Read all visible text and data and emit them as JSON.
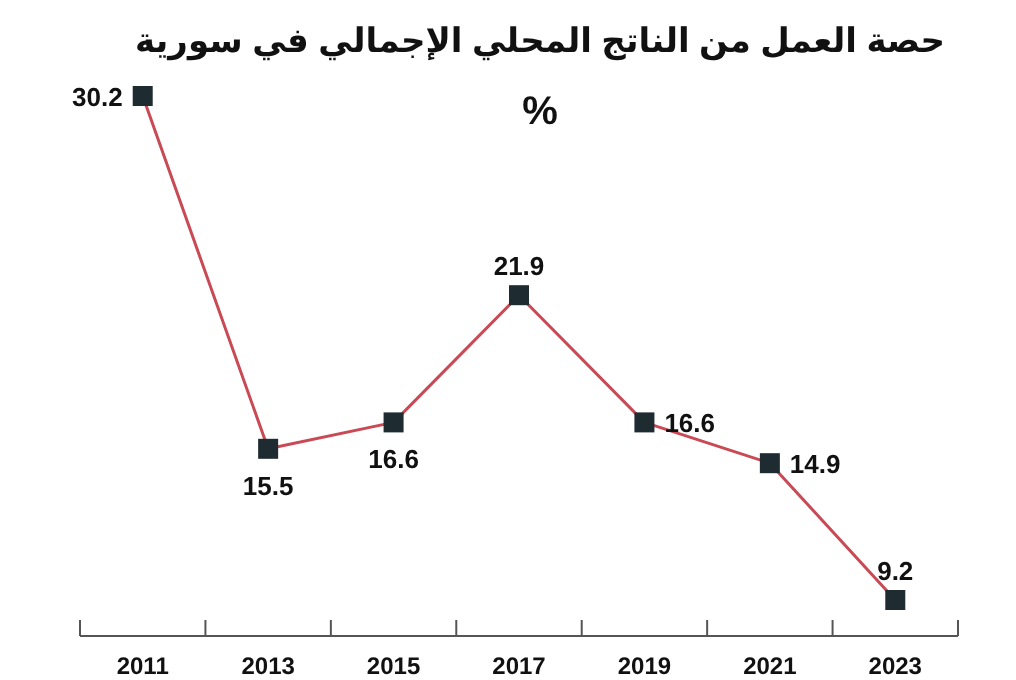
{
  "chart_data": {
    "type": "line",
    "title": "حصة العمل من الناتج المحلي الإجمالي في سورية",
    "subtitle": "%",
    "categories": [
      "2011",
      "2013",
      "2015",
      "2017",
      "2019",
      "2021",
      "2023"
    ],
    "series": [
      {
        "color": "#c94a55",
        "values": [
          30.2,
          15.5,
          16.6,
          21.9,
          16.6,
          14.9,
          9.2
        ]
      }
    ],
    "marker": "square",
    "data_labels": true
  }
}
